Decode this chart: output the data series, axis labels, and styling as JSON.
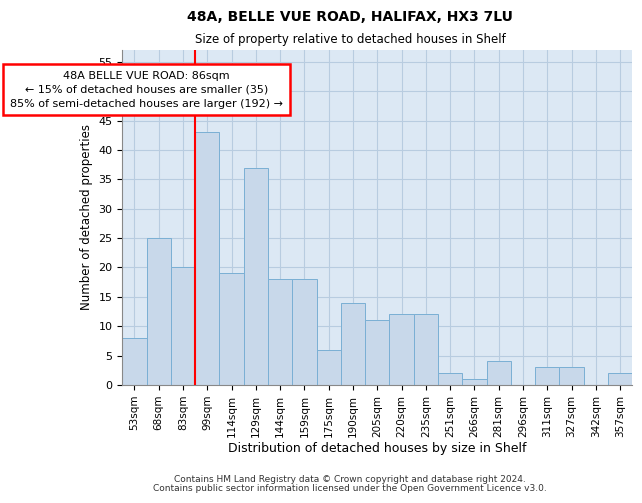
{
  "title1": "48A, BELLE VUE ROAD, HALIFAX, HX3 7LU",
  "title2": "Size of property relative to detached houses in Shelf",
  "xlabel": "Distribution of detached houses by size in Shelf",
  "ylabel": "Number of detached properties",
  "bin_labels": [
    "53sqm",
    "68sqm",
    "83sqm",
    "99sqm",
    "114sqm",
    "129sqm",
    "144sqm",
    "159sqm",
    "175sqm",
    "190sqm",
    "205sqm",
    "220sqm",
    "235sqm",
    "251sqm",
    "266sqm",
    "281sqm",
    "296sqm",
    "311sqm",
    "327sqm",
    "342sqm",
    "357sqm"
  ],
  "bar_values": [
    8,
    25,
    20,
    43,
    19,
    37,
    18,
    18,
    6,
    14,
    11,
    12,
    12,
    2,
    1,
    4,
    0,
    3,
    3,
    0,
    2
  ],
  "bar_color": "#c8d8ea",
  "bar_edge_color": "#7aafd4",
  "grid_color": "#b8cce0",
  "background_color": "#dce8f4",
  "red_line_x": 2.5,
  "annotation_line1": "48A BELLE VUE ROAD: 86sqm",
  "annotation_line2": "← 15% of detached houses are smaller (35)",
  "annotation_line3": "85% of semi-detached houses are larger (192) →",
  "ylim_max": 57,
  "yticks": [
    0,
    5,
    10,
    15,
    20,
    25,
    30,
    35,
    40,
    45,
    50,
    55
  ],
  "footer1": "Contains HM Land Registry data © Crown copyright and database right 2024.",
  "footer2": "Contains public sector information licensed under the Open Government Licence v3.0."
}
